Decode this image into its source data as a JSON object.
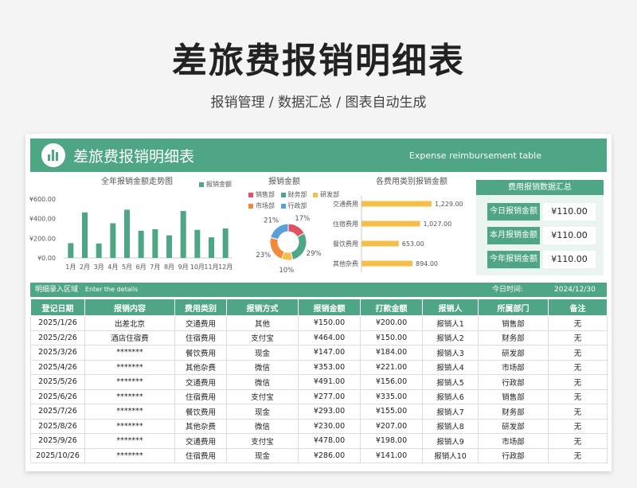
{
  "page": {
    "title": "差旅费报销明细表",
    "subtitle": "报销管理  /  数据汇总 /  图表自动生成"
  },
  "sheet_header": {
    "title": "差旅费报销明细表",
    "english": "Expense reimbursement table"
  },
  "colors": {
    "accent": "#4fa684",
    "bar_green": "#4fa684",
    "bar_yellow": "#f5bd4a"
  },
  "icons": {
    "logo": "bar-chart-icon"
  },
  "charts": [
    {
      "type": "bar",
      "title": "全年报销金额走势图",
      "legend": "报销金额",
      "categories": [
        "1月",
        "2月",
        "3月",
        "4月",
        "5月",
        "6月",
        "7月",
        "8月",
        "9月",
        "10月",
        "11月",
        "12月"
      ],
      "values": [
        150,
        464,
        147,
        353,
        491,
        277,
        293,
        230,
        478,
        286,
        210,
        300
      ],
      "ytick_labels": [
        "¥0.00",
        "¥200.00",
        "¥400.00",
        "¥600.00"
      ],
      "ylim": [
        0,
        600
      ]
    },
    {
      "type": "pie",
      "title": "报销金额",
      "legend": [
        "销售部",
        "财务部",
        "研发部",
        "市场部",
        "行政部"
      ],
      "colors": [
        "#e05263",
        "#4fa684",
        "#f5bd4a",
        "#f08a3c",
        "#5aa0d8"
      ],
      "values": [
        17,
        29,
        10,
        23,
        21
      ],
      "labels": [
        "17%",
        "29%",
        "10%",
        "23%",
        "21%"
      ]
    },
    {
      "type": "bar-horizontal",
      "title": "各费用类别报销金额",
      "categories": [
        "交通费用",
        "住宿费用",
        "餐饮费用",
        "其他杂费"
      ],
      "values": [
        1229,
        1027,
        653,
        894
      ],
      "value_labels": [
        "1,229.00",
        "1,027.00",
        "653.00",
        "894.00"
      ]
    }
  ],
  "summary": {
    "title": "费用报销数据汇总",
    "rows": [
      {
        "label": "今日报销金额",
        "value": "¥110.00"
      },
      {
        "label": "本月报销金额",
        "value": "¥110.00"
      },
      {
        "label": "今年报销金额",
        "value": "¥110.00"
      }
    ]
  },
  "entry": {
    "label": "明细录入区域",
    "hint": "Enter the details",
    "date_label": "今日时间:",
    "date": "2024/12/30"
  },
  "table": {
    "headers": [
      "登记日期",
      "报销内容",
      "费用类别",
      "报销方式",
      "报销金额",
      "打款金额",
      "报销人",
      "所属部门",
      "备注"
    ],
    "rows": [
      [
        "2025/1/26",
        "出差北京",
        "交通费用",
        "其他",
        "¥150.00",
        "¥200.00",
        "报销人1",
        "销售部",
        "无"
      ],
      [
        "2025/2/26",
        "酒店住宿费",
        "住宿费用",
        "支付宝",
        "¥464.00",
        "¥150.00",
        "报销人2",
        "财务部",
        "无"
      ],
      [
        "2025/3/26",
        "*******",
        "餐饮费用",
        "现金",
        "¥147.00",
        "¥184.00",
        "报销人3",
        "研发部",
        "无"
      ],
      [
        "2025/4/26",
        "*******",
        "其他杂费",
        "微信",
        "¥353.00",
        "¥221.00",
        "报销人4",
        "市场部",
        "无"
      ],
      [
        "2025/5/26",
        "*******",
        "交通费用",
        "微信",
        "¥491.00",
        "¥156.00",
        "报销人5",
        "行政部",
        "无"
      ],
      [
        "2025/6/26",
        "*******",
        "住宿费用",
        "支付宝",
        "¥277.00",
        "¥335.00",
        "报销人6",
        "销售部",
        "无"
      ],
      [
        "2025/7/26",
        "*******",
        "餐饮费用",
        "现金",
        "¥293.00",
        "¥155.00",
        "报销人7",
        "财务部",
        "无"
      ],
      [
        "2025/8/26",
        "*******",
        "其他杂费",
        "微信",
        "¥230.00",
        "¥207.00",
        "报销人8",
        "研发部",
        "无"
      ],
      [
        "2025/9/26",
        "*******",
        "交通费用",
        "支付宝",
        "¥478.00",
        "¥198.00",
        "报销人9",
        "市场部",
        "无"
      ],
      [
        "2025/10/26",
        "*******",
        "住宿费用",
        "现金",
        "¥286.00",
        "¥141.00",
        "报销人10",
        "行政部",
        "无"
      ]
    ]
  }
}
